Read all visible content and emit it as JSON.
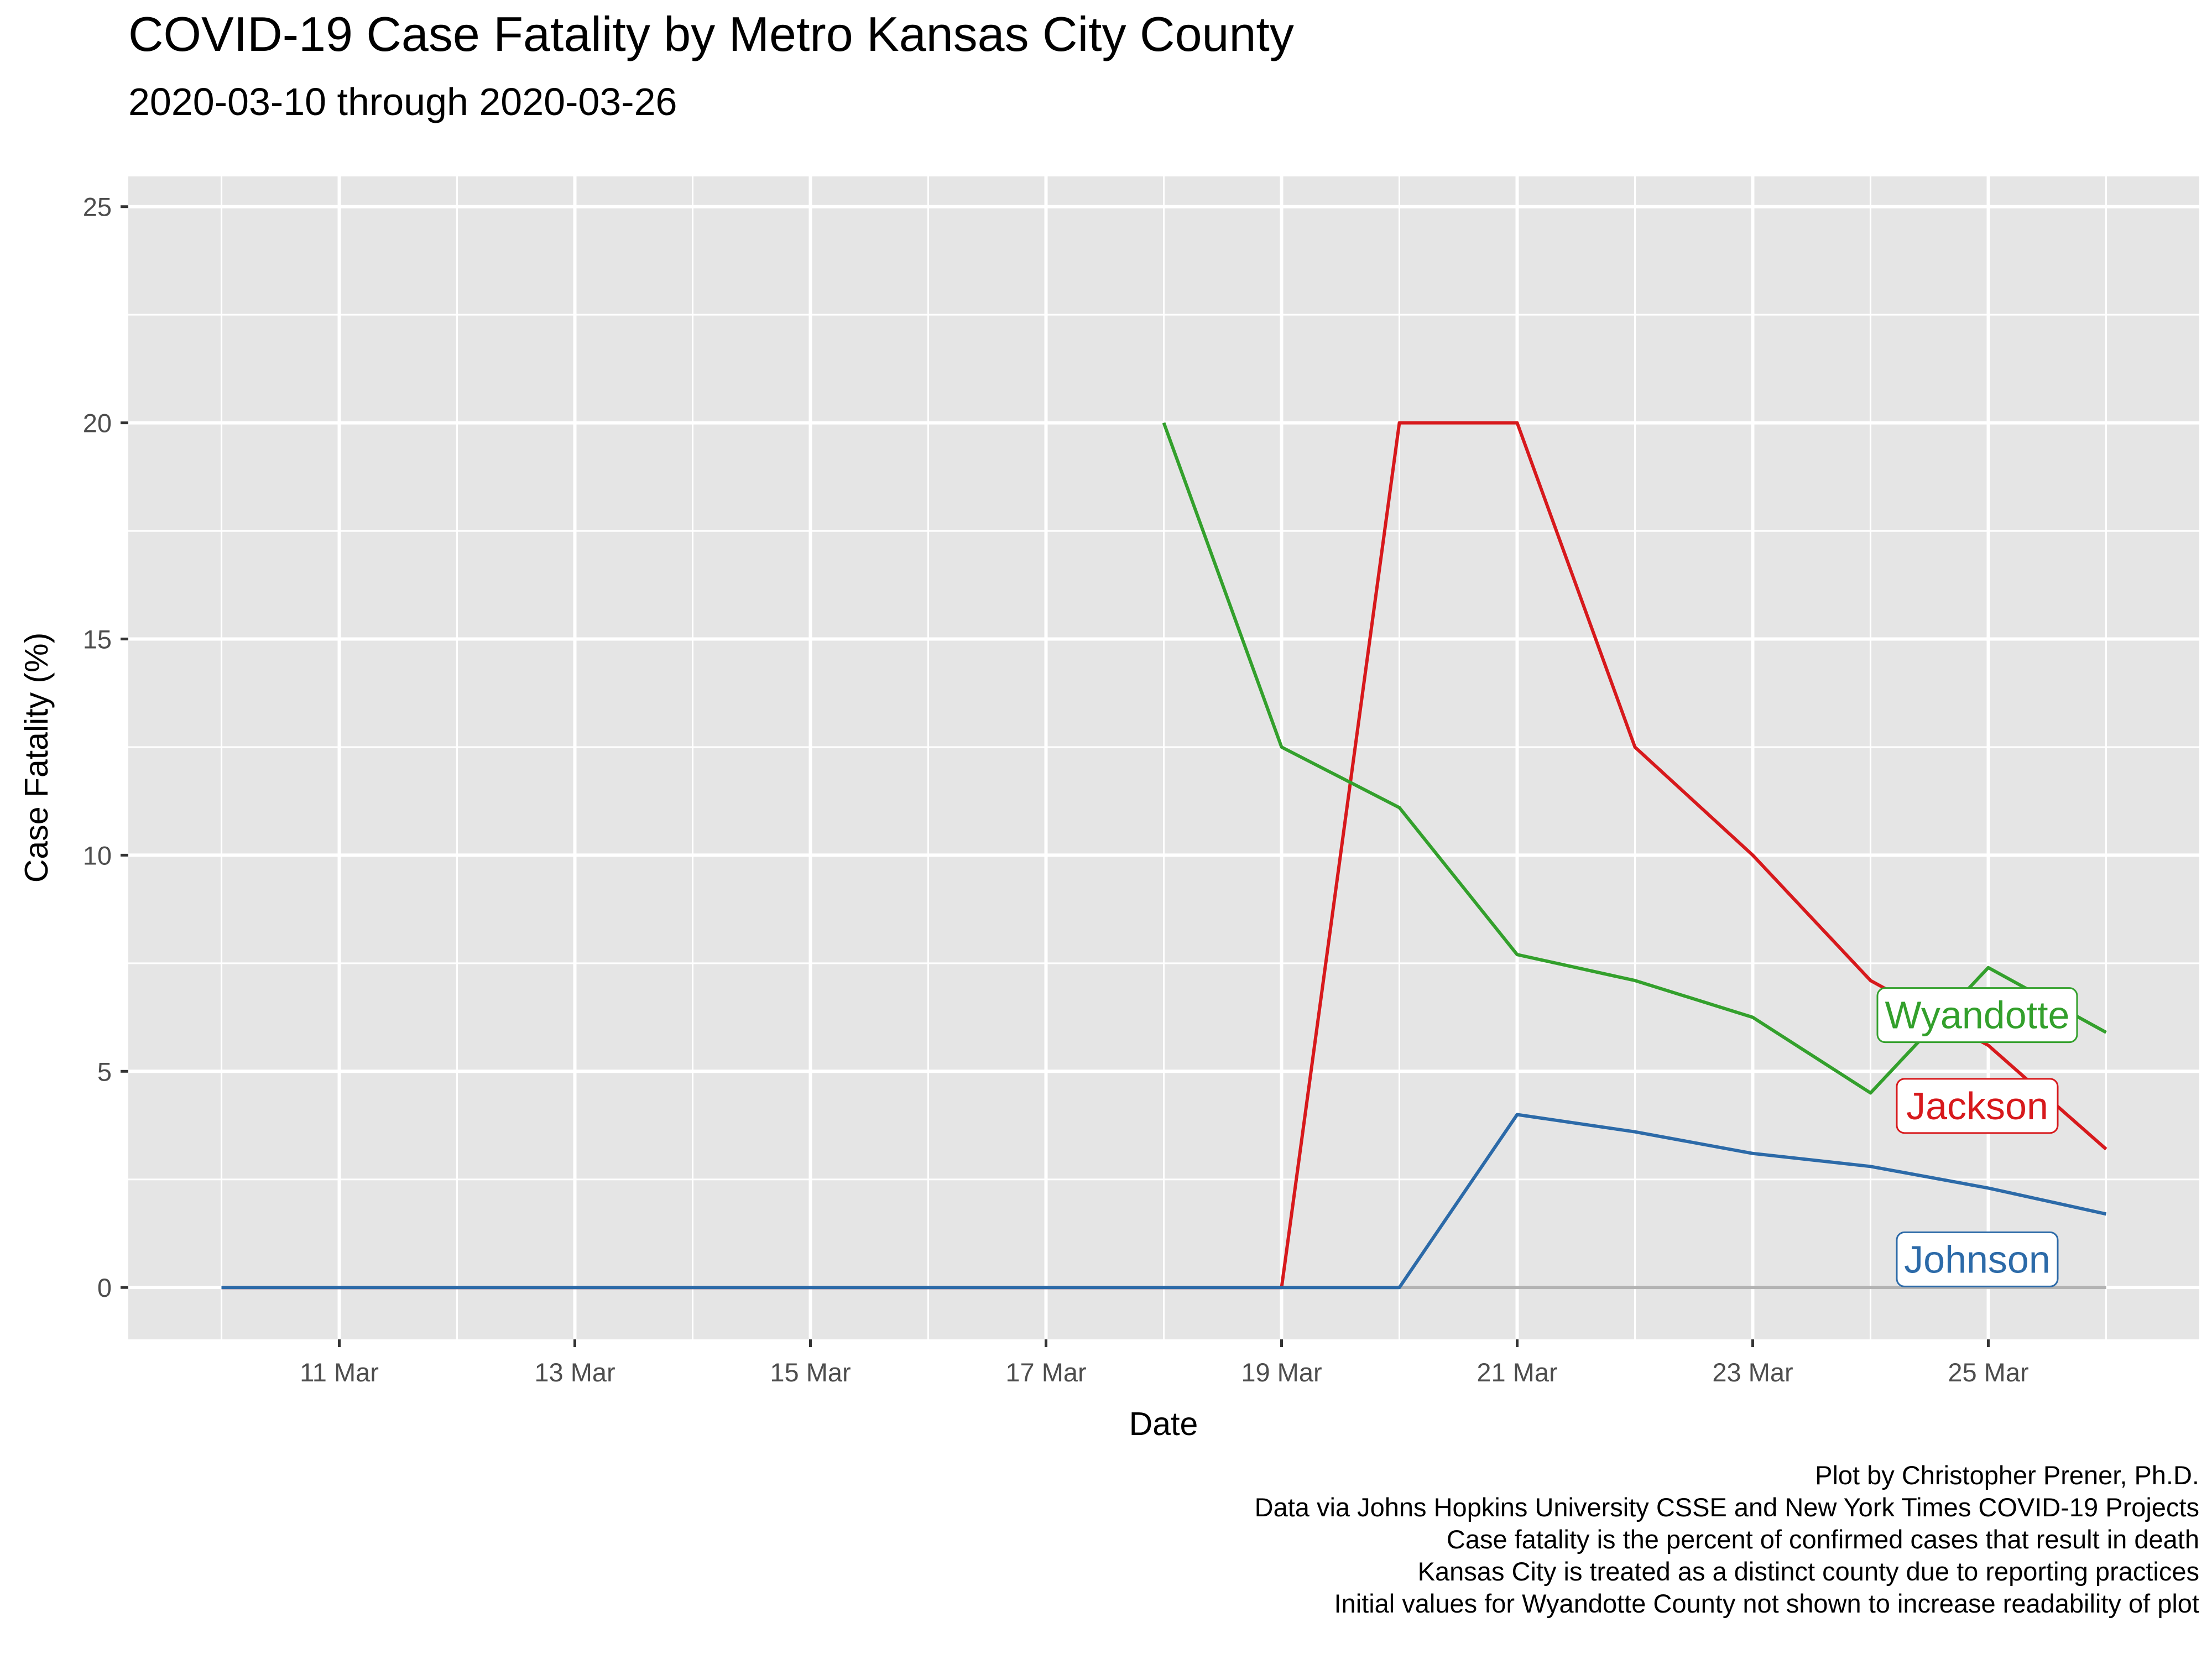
{
  "chart_data": {
    "type": "line",
    "title": "COVID-19 Case Fatality by Metro Kansas City County",
    "subtitle": "2020-03-10 through 2020-03-26",
    "xlabel": "Date",
    "ylabel": "Case Fatality (%)",
    "x": [
      "2020-03-10",
      "2020-03-11",
      "2020-03-12",
      "2020-03-13",
      "2020-03-14",
      "2020-03-15",
      "2020-03-16",
      "2020-03-17",
      "2020-03-18",
      "2020-03-19",
      "2020-03-20",
      "2020-03-21",
      "2020-03-22",
      "2020-03-23",
      "2020-03-24",
      "2020-03-25",
      "2020-03-26"
    ],
    "x_ticks": [
      "11 Mar",
      "13 Mar",
      "15 Mar",
      "17 Mar",
      "19 Mar",
      "21 Mar",
      "23 Mar",
      "25 Mar"
    ],
    "x_tick_dates": [
      "2020-03-11",
      "2020-03-13",
      "2020-03-15",
      "2020-03-17",
      "2020-03-19",
      "2020-03-21",
      "2020-03-23",
      "2020-03-25"
    ],
    "xlim": [
      "2020-03-10",
      "2020-03-26"
    ],
    "y_ticks": [
      0,
      5,
      10,
      15,
      20,
      25
    ],
    "ylim": [
      -1.2,
      25.7
    ],
    "grid": true,
    "series": [
      {
        "name": "Jackson",
        "color": "#d7191c",
        "values": [
          0,
          0,
          0,
          0,
          0,
          0,
          0,
          0,
          0,
          0,
          20,
          20,
          12.5,
          10,
          7.1,
          5.6,
          3.2
        ]
      },
      {
        "name": "Wyandotte",
        "color": "#33a02c",
        "values": [
          null,
          null,
          null,
          null,
          null,
          null,
          null,
          null,
          20,
          12.5,
          11.1,
          7.7,
          7.1,
          6.25,
          4.5,
          7.4,
          5.9
        ]
      },
      {
        "name": "Johnson",
        "color": "#2c6aa8",
        "values": [
          0,
          0,
          0,
          0,
          0,
          0,
          0,
          0,
          0,
          0,
          0,
          4.0,
          3.6,
          3.1,
          2.8,
          2.3,
          1.7
        ]
      }
    ],
    "caption": [
      "Plot by Christopher Prener, Ph.D.",
      "Data via Johns Hopkins University CSSE and New York Times COVID-19 Projects",
      "Case fatality is the percent of confirmed cases that result in death",
      "Kansas City is treated as a distinct county due to reporting practices",
      "Initial values for Wyandotte County not shown to increase readability of plot"
    ]
  }
}
